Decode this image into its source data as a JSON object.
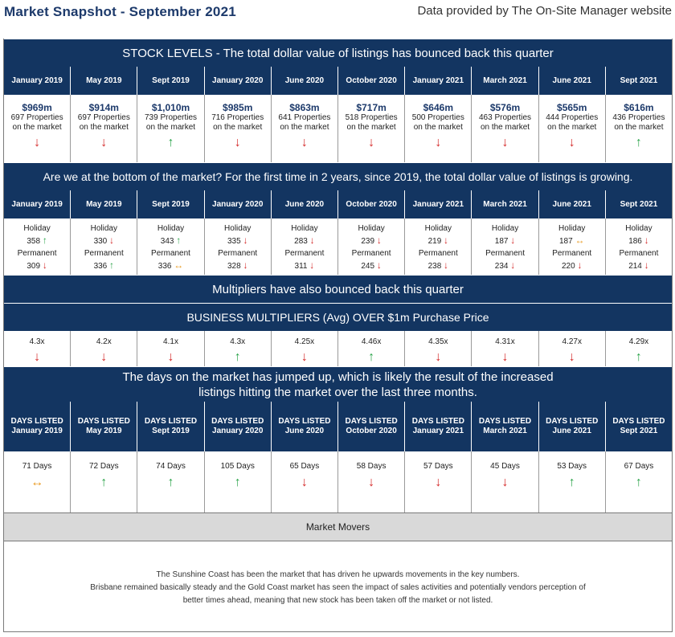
{
  "header": {
    "title": "Market Snapshot - September 2021",
    "source": "Data provided by The On-Site Manager website"
  },
  "stock": {
    "title": "STOCK LEVELS - The total dollar value of listings has bounced back this quarter",
    "periods": [
      "January 2019",
      "May 2019",
      "Sept 2019",
      "January 2020",
      "June 2020",
      "October 2020",
      "January 2021",
      "March 2021",
      "June 2021",
      "Sept 2021"
    ],
    "items": [
      {
        "value": "$969m",
        "line1": "697 Properties",
        "line2": "on the market",
        "arrow": "↓",
        "dir": "down"
      },
      {
        "value": "$914m",
        "line1": "697 Properties",
        "line2": "on the market",
        "arrow": "↓",
        "dir": "down"
      },
      {
        "value": "$1,010m",
        "line1": "739 Properties",
        "line2": "on the market",
        "arrow": "↑",
        "dir": "up"
      },
      {
        "value": "$985m",
        "line1": "716 Properties",
        "line2": "on the market",
        "arrow": "↓",
        "dir": "down"
      },
      {
        "value": "$863m",
        "line1": "641 Properties",
        "line2": "on the market",
        "arrow": "↓",
        "dir": "down"
      },
      {
        "value": "$717m",
        "line1": "518 Properties",
        "line2": "on the market",
        "arrow": "↓",
        "dir": "down"
      },
      {
        "value": "$646m",
        "line1": "500 Properties",
        "line2": "on the market",
        "arrow": "↓",
        "dir": "down"
      },
      {
        "value": "$576m",
        "line1": "463 Properties",
        "line2": "on the market",
        "arrow": "↓",
        "dir": "down"
      },
      {
        "value": "$565m",
        "line1": "444 Properties",
        "line2": "on the market",
        "arrow": "↓",
        "dir": "down"
      },
      {
        "value": "$616m",
        "line1": "436 Properties",
        "line2": "on the market",
        "arrow": "↑",
        "dir": "up"
      }
    ]
  },
  "mix": {
    "title": "Are we at the bottom of the market? For the first time in 2 years, since 2019, the total dollar value of listings is growing.",
    "periods": [
      "January 2019",
      "May 2019",
      "Sept 2019",
      "January 2020",
      "June 2020",
      "October 2020",
      "January 2021",
      "March 2021",
      "June 2021",
      "Sept 2021"
    ],
    "holiday_label": "Holiday",
    "permanent_label": "Permanent",
    "items": [
      {
        "holiday": "358",
        "h_arrow": "↑",
        "h_dir": "up",
        "permanent": "309",
        "p_arrow": "↓",
        "p_dir": "down"
      },
      {
        "holiday": "330",
        "h_arrow": "↓",
        "h_dir": "down",
        "permanent": "336",
        "p_arrow": "↑",
        "p_dir": "up"
      },
      {
        "holiday": "343",
        "h_arrow": "↑",
        "h_dir": "up",
        "permanent": "336",
        "p_arrow": "↔",
        "p_dir": "flat"
      },
      {
        "holiday": "335",
        "h_arrow": "↓",
        "h_dir": "down",
        "permanent": "328",
        "p_arrow": "↓",
        "p_dir": "down"
      },
      {
        "holiday": "283",
        "h_arrow": "↓",
        "h_dir": "down",
        "permanent": "311",
        "p_arrow": "↓",
        "p_dir": "down"
      },
      {
        "holiday": "239",
        "h_arrow": "↓",
        "h_dir": "down",
        "permanent": "245",
        "p_arrow": "↓",
        "p_dir": "down"
      },
      {
        "holiday": "219",
        "h_arrow": "↓",
        "h_dir": "down",
        "permanent": "238",
        "p_arrow": "↓",
        "p_dir": "down"
      },
      {
        "holiday": "187",
        "h_arrow": "↓",
        "h_dir": "down",
        "permanent": "234",
        "p_arrow": "↓",
        "p_dir": "down"
      },
      {
        "holiday": "187",
        "h_arrow": "↔",
        "h_dir": "flat",
        "permanent": "220",
        "p_arrow": "↓",
        "p_dir": "down"
      },
      {
        "holiday": "186",
        "h_arrow": "↓",
        "h_dir": "down",
        "permanent": "214",
        "p_arrow": "↓",
        "p_dir": "down"
      }
    ]
  },
  "multipliers": {
    "title": "Multipliers have also bounced back this quarter",
    "subtitle": "BUSINESS MULTIPLIERS (Avg) OVER $1m Purchase Price",
    "items": [
      {
        "value": "4.3x",
        "arrow": "↓",
        "dir": "down"
      },
      {
        "value": "4.2x",
        "arrow": "↓",
        "dir": "down"
      },
      {
        "value": "4.1x",
        "arrow": "↓",
        "dir": "down"
      },
      {
        "value": "4.3x",
        "arrow": "↑",
        "dir": "up"
      },
      {
        "value": "4.25x",
        "arrow": "↓",
        "dir": "down"
      },
      {
        "value": "4.46x",
        "arrow": "↑",
        "dir": "up"
      },
      {
        "value": "4.35x",
        "arrow": "↓",
        "dir": "down"
      },
      {
        "value": "4.31x",
        "arrow": "↓",
        "dir": "down"
      },
      {
        "value": "4.27x",
        "arrow": "↓",
        "dir": "down"
      },
      {
        "value": "4.29x",
        "arrow": "↑",
        "dir": "up"
      }
    ]
  },
  "days": {
    "title_line1": "The days on the market has jumped up, which is likely the result of the increased",
    "title_line2": "listings hitting the market over the last three months.",
    "header_prefix": "DAYS LISTED",
    "periods": [
      "January 2019",
      "May 2019",
      "Sept 2019",
      "January 2020",
      "June 2020",
      "October 2020",
      "January 2021",
      "March 2021",
      "June 2021",
      "Sept 2021"
    ],
    "items": [
      {
        "value": "71 Days",
        "arrow": "↔",
        "dir": "flat"
      },
      {
        "value": "72 Days",
        "arrow": "↑",
        "dir": "up"
      },
      {
        "value": "74 Days",
        "arrow": "↑",
        "dir": "up"
      },
      {
        "value": "105 Days",
        "arrow": "↑",
        "dir": "up"
      },
      {
        "value": "65 Days",
        "arrow": "↓",
        "dir": "down"
      },
      {
        "value": "58 Days",
        "arrow": "↓",
        "dir": "down"
      },
      {
        "value": "57 Days",
        "arrow": "↓",
        "dir": "down"
      },
      {
        "value": "45 Days",
        "arrow": "↓",
        "dir": "down"
      },
      {
        "value": "53 Days",
        "arrow": "↑",
        "dir": "up"
      },
      {
        "value": "67 Days",
        "arrow": "↑",
        "dir": "up"
      }
    ]
  },
  "movers": {
    "title": "Market Movers",
    "line1": "The Sunshine Coast has been the market that has driven he upwards movements in the key numbers.",
    "line2": "Brisbane remained basically steady and the Gold Coast market has seen the impact of sales activities and potentially vendors perception of",
    "line3": "better times ahead, meaning that new stock has been taken off the market or not listed."
  },
  "colors": {
    "navy": "#133561",
    "down": "#d42a2a",
    "up": "#2ba44a",
    "flat": "#e99a22",
    "movers_bg": "#d9d9d9"
  }
}
